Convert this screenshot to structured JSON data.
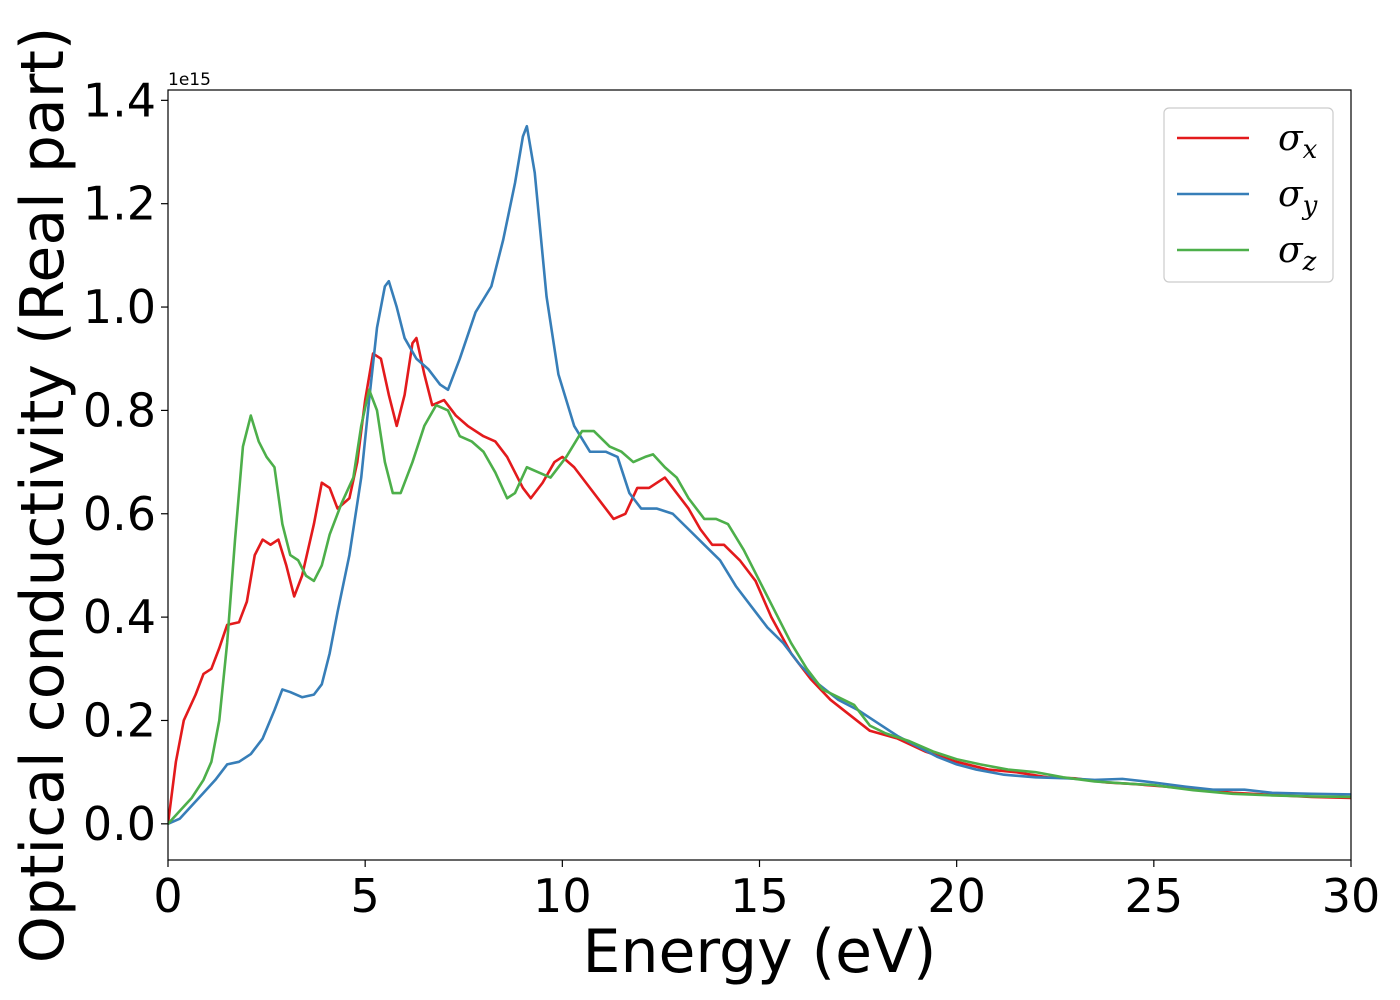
{
  "chart_data": {
    "type": "line",
    "xlabel": "Energy (eV)",
    "ylabel": "Optical conductivity (Real part)",
    "offset_label": "1e15",
    "xlim": [
      0,
      30
    ],
    "ylim": [
      -0.07,
      1.42
    ],
    "x_ticks": [
      0,
      5,
      10,
      15,
      20,
      25,
      30
    ],
    "x_tick_labels": [
      "0",
      "5",
      "10",
      "15",
      "20",
      "25",
      "30"
    ],
    "y_ticks": [
      0.0,
      0.2,
      0.4,
      0.6,
      0.8,
      1.0,
      1.2,
      1.4
    ],
    "y_tick_labels": [
      "0.0",
      "0.2",
      "0.4",
      "0.6",
      "0.8",
      "1.0",
      "1.2",
      "1.4"
    ],
    "grid": false,
    "legend_position": "top-right",
    "series": [
      {
        "name": "σx",
        "symbol": "σ",
        "subscript": "x",
        "color": "#e31a1c",
        "points": [
          [
            0,
            0
          ],
          [
            0.2,
            0.12
          ],
          [
            0.4,
            0.2
          ],
          [
            0.7,
            0.25
          ],
          [
            0.9,
            0.29
          ],
          [
            1.1,
            0.3
          ],
          [
            1.3,
            0.34
          ],
          [
            1.5,
            0.385
          ],
          [
            1.8,
            0.39
          ],
          [
            2.0,
            0.43
          ],
          [
            2.2,
            0.52
          ],
          [
            2.4,
            0.55
          ],
          [
            2.6,
            0.54
          ],
          [
            2.8,
            0.55
          ],
          [
            3.0,
            0.5
          ],
          [
            3.2,
            0.44
          ],
          [
            3.4,
            0.48
          ],
          [
            3.7,
            0.58
          ],
          [
            3.9,
            0.66
          ],
          [
            4.1,
            0.65
          ],
          [
            4.3,
            0.61
          ],
          [
            4.6,
            0.63
          ],
          [
            4.8,
            0.7
          ],
          [
            5.0,
            0.82
          ],
          [
            5.2,
            0.91
          ],
          [
            5.4,
            0.9
          ],
          [
            5.6,
            0.83
          ],
          [
            5.8,
            0.77
          ],
          [
            6.0,
            0.83
          ],
          [
            6.2,
            0.93
          ],
          [
            6.3,
            0.94
          ],
          [
            6.5,
            0.87
          ],
          [
            6.7,
            0.81
          ],
          [
            7.0,
            0.82
          ],
          [
            7.3,
            0.79
          ],
          [
            7.6,
            0.77
          ],
          [
            8.0,
            0.75
          ],
          [
            8.3,
            0.74
          ],
          [
            8.6,
            0.71
          ],
          [
            8.8,
            0.68
          ],
          [
            9.0,
            0.65
          ],
          [
            9.2,
            0.63
          ],
          [
            9.5,
            0.66
          ],
          [
            9.8,
            0.7
          ],
          [
            10.0,
            0.71
          ],
          [
            10.3,
            0.69
          ],
          [
            10.6,
            0.66
          ],
          [
            11.0,
            0.62
          ],
          [
            11.3,
            0.59
          ],
          [
            11.6,
            0.6
          ],
          [
            11.9,
            0.65
          ],
          [
            12.2,
            0.65
          ],
          [
            12.6,
            0.67
          ],
          [
            12.9,
            0.64
          ],
          [
            13.2,
            0.61
          ],
          [
            13.5,
            0.57
          ],
          [
            13.8,
            0.54
          ],
          [
            14.1,
            0.54
          ],
          [
            14.5,
            0.51
          ],
          [
            14.9,
            0.47
          ],
          [
            15.3,
            0.4
          ],
          [
            15.8,
            0.33
          ],
          [
            16.3,
            0.28
          ],
          [
            16.8,
            0.24
          ],
          [
            17.3,
            0.21
          ],
          [
            17.8,
            0.18
          ],
          [
            18.5,
            0.165
          ],
          [
            19.2,
            0.14
          ],
          [
            20.0,
            0.12
          ],
          [
            20.8,
            0.105
          ],
          [
            21.5,
            0.1
          ],
          [
            22.3,
            0.09
          ],
          [
            23.0,
            0.088
          ],
          [
            23.8,
            0.08
          ],
          [
            24.5,
            0.077
          ],
          [
            25.3,
            0.072
          ],
          [
            26.0,
            0.067
          ],
          [
            27.0,
            0.06
          ],
          [
            28.0,
            0.056
          ],
          [
            29.0,
            0.052
          ],
          [
            30.0,
            0.05
          ]
        ]
      },
      {
        "name": "σy",
        "symbol": "σ",
        "subscript": "y",
        "color": "#377eb8",
        "points": [
          [
            0,
            0
          ],
          [
            0.3,
            0.01
          ],
          [
            0.6,
            0.035
          ],
          [
            0.9,
            0.06
          ],
          [
            1.2,
            0.085
          ],
          [
            1.5,
            0.115
          ],
          [
            1.8,
            0.12
          ],
          [
            2.1,
            0.135
          ],
          [
            2.4,
            0.165
          ],
          [
            2.7,
            0.22
          ],
          [
            2.9,
            0.26
          ],
          [
            3.1,
            0.255
          ],
          [
            3.4,
            0.245
          ],
          [
            3.7,
            0.25
          ],
          [
            3.9,
            0.27
          ],
          [
            4.1,
            0.33
          ],
          [
            4.3,
            0.41
          ],
          [
            4.6,
            0.52
          ],
          [
            4.9,
            0.67
          ],
          [
            5.1,
            0.82
          ],
          [
            5.3,
            0.96
          ],
          [
            5.5,
            1.04
          ],
          [
            5.6,
            1.05
          ],
          [
            5.8,
            1.0
          ],
          [
            6.0,
            0.94
          ],
          [
            6.3,
            0.9
          ],
          [
            6.6,
            0.88
          ],
          [
            6.9,
            0.85
          ],
          [
            7.1,
            0.84
          ],
          [
            7.4,
            0.9
          ],
          [
            7.8,
            0.99
          ],
          [
            8.2,
            1.04
          ],
          [
            8.5,
            1.13
          ],
          [
            8.8,
            1.24
          ],
          [
            9.0,
            1.33
          ],
          [
            9.1,
            1.35
          ],
          [
            9.3,
            1.26
          ],
          [
            9.6,
            1.02
          ],
          [
            9.9,
            0.87
          ],
          [
            10.3,
            0.77
          ],
          [
            10.7,
            0.72
          ],
          [
            11.1,
            0.72
          ],
          [
            11.4,
            0.71
          ],
          [
            11.7,
            0.64
          ],
          [
            12.0,
            0.61
          ],
          [
            12.4,
            0.61
          ],
          [
            12.8,
            0.6
          ],
          [
            13.2,
            0.57
          ],
          [
            13.6,
            0.54
          ],
          [
            14.0,
            0.51
          ],
          [
            14.4,
            0.46
          ],
          [
            14.8,
            0.42
          ],
          [
            15.2,
            0.38
          ],
          [
            15.6,
            0.35
          ],
          [
            16.0,
            0.31
          ],
          [
            16.5,
            0.27
          ],
          [
            17.0,
            0.24
          ],
          [
            17.5,
            0.22
          ],
          [
            18.0,
            0.195
          ],
          [
            18.5,
            0.17
          ],
          [
            19.0,
            0.15
          ],
          [
            19.5,
            0.13
          ],
          [
            20.0,
            0.115
          ],
          [
            20.5,
            0.105
          ],
          [
            21.2,
            0.095
          ],
          [
            22.0,
            0.09
          ],
          [
            22.8,
            0.088
          ],
          [
            23.5,
            0.085
          ],
          [
            24.2,
            0.087
          ],
          [
            25.0,
            0.08
          ],
          [
            25.8,
            0.072
          ],
          [
            26.5,
            0.066
          ],
          [
            27.3,
            0.066
          ],
          [
            28.0,
            0.06
          ],
          [
            29.0,
            0.058
          ],
          [
            30.0,
            0.057
          ]
        ]
      },
      {
        "name": "σz",
        "symbol": "σ",
        "subscript": "z",
        "color": "#4daf4a",
        "points": [
          [
            0,
            0
          ],
          [
            0.3,
            0.025
          ],
          [
            0.6,
            0.05
          ],
          [
            0.9,
            0.085
          ],
          [
            1.1,
            0.12
          ],
          [
            1.3,
            0.2
          ],
          [
            1.5,
            0.35
          ],
          [
            1.7,
            0.55
          ],
          [
            1.9,
            0.73
          ],
          [
            2.1,
            0.79
          ],
          [
            2.3,
            0.74
          ],
          [
            2.5,
            0.71
          ],
          [
            2.7,
            0.69
          ],
          [
            2.9,
            0.58
          ],
          [
            3.1,
            0.52
          ],
          [
            3.3,
            0.51
          ],
          [
            3.5,
            0.48
          ],
          [
            3.7,
            0.47
          ],
          [
            3.9,
            0.5
          ],
          [
            4.1,
            0.56
          ],
          [
            4.4,
            0.62
          ],
          [
            4.7,
            0.67
          ],
          [
            4.9,
            0.77
          ],
          [
            5.1,
            0.84
          ],
          [
            5.3,
            0.8
          ],
          [
            5.5,
            0.7
          ],
          [
            5.7,
            0.64
          ],
          [
            5.9,
            0.64
          ],
          [
            6.2,
            0.7
          ],
          [
            6.5,
            0.77
          ],
          [
            6.8,
            0.81
          ],
          [
            7.1,
            0.8
          ],
          [
            7.4,
            0.75
          ],
          [
            7.7,
            0.74
          ],
          [
            8.0,
            0.72
          ],
          [
            8.3,
            0.68
          ],
          [
            8.6,
            0.63
          ],
          [
            8.8,
            0.64
          ],
          [
            9.1,
            0.69
          ],
          [
            9.4,
            0.68
          ],
          [
            9.7,
            0.67
          ],
          [
            10.1,
            0.71
          ],
          [
            10.5,
            0.76
          ],
          [
            10.8,
            0.76
          ],
          [
            11.2,
            0.73
          ],
          [
            11.5,
            0.72
          ],
          [
            11.8,
            0.7
          ],
          [
            12.1,
            0.71
          ],
          [
            12.3,
            0.715
          ],
          [
            12.6,
            0.69
          ],
          [
            12.9,
            0.67
          ],
          [
            13.2,
            0.63
          ],
          [
            13.6,
            0.59
          ],
          [
            13.9,
            0.59
          ],
          [
            14.2,
            0.58
          ],
          [
            14.6,
            0.53
          ],
          [
            15.0,
            0.47
          ],
          [
            15.4,
            0.41
          ],
          [
            15.8,
            0.35
          ],
          [
            16.2,
            0.3
          ],
          [
            16.6,
            0.26
          ],
          [
            17.0,
            0.245
          ],
          [
            17.4,
            0.23
          ],
          [
            17.8,
            0.19
          ],
          [
            18.2,
            0.175
          ],
          [
            18.8,
            0.16
          ],
          [
            19.4,
            0.14
          ],
          [
            20.0,
            0.125
          ],
          [
            20.6,
            0.115
          ],
          [
            21.3,
            0.105
          ],
          [
            22.0,
            0.1
          ],
          [
            22.7,
            0.09
          ],
          [
            23.5,
            0.082
          ],
          [
            24.3,
            0.078
          ],
          [
            25.0,
            0.075
          ],
          [
            26.0,
            0.065
          ],
          [
            27.0,
            0.058
          ],
          [
            28.0,
            0.055
          ],
          [
            29.0,
            0.053
          ],
          [
            30.0,
            0.052
          ]
        ]
      }
    ]
  }
}
